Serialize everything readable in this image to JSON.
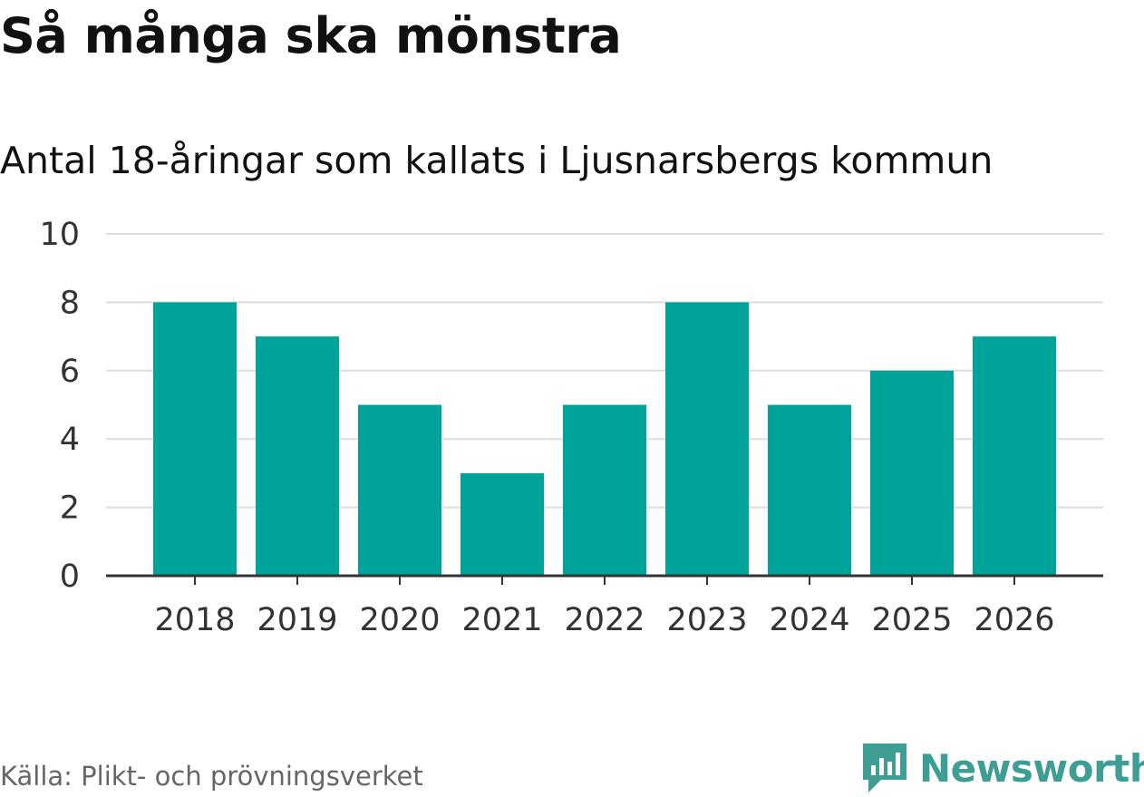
{
  "title": "Så många ska mönstra",
  "subtitle": "Antal 18-åringar som kallats i Ljusnarsbergs kommun",
  "source": "Källa: Plikt- och prövningsverket",
  "brand": {
    "name": "Newsworthy",
    "icon": "newsworthy-logo-icon",
    "color": "#3f9e94"
  },
  "colors": {
    "bar": "#00a39a",
    "grid": "#dddddd",
    "axis": "#333333"
  },
  "chart_data": {
    "type": "bar",
    "title": "Så många ska mönstra",
    "subtitle": "Antal 18-åringar som kallats i Ljusnarsbergs kommun",
    "categories": [
      "2018",
      "2019",
      "2020",
      "2021",
      "2022",
      "2023",
      "2024",
      "2025",
      "2026"
    ],
    "values": [
      8,
      7,
      5,
      3,
      5,
      8,
      5,
      6,
      7
    ],
    "xlabel": "",
    "ylabel": "",
    "ylim": [
      0,
      10
    ],
    "yticks": [
      "0",
      "2",
      "4",
      "6",
      "8",
      "10"
    ],
    "grid": true,
    "legend": "none"
  }
}
